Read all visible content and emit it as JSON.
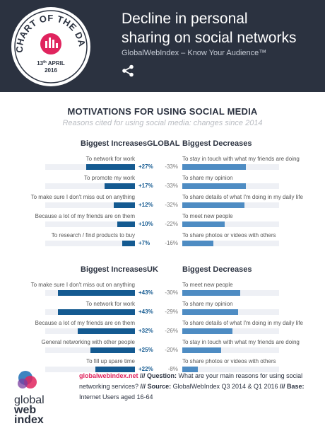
{
  "header": {
    "badge_text": "CHART OF THE DAY",
    "badge_date_day": "13",
    "badge_date_suffix": "th",
    "badge_date_month": "APRIL",
    "badge_year": "2016",
    "title_line1": "Decline in personal",
    "title_line2": "sharing on social networks",
    "subtitle": "GlobalWebIndex – Know Your Audience™",
    "share_icon": "share-icon"
  },
  "section": {
    "title": "MOTIVATIONS FOR USING SOCIAL MEDIA",
    "subtitle": "Reasons cited for using social media: changes since 2014"
  },
  "colors": {
    "header_bg": "#2b3240",
    "increase": "#145a91",
    "decrease": "#4e8cc3",
    "track": "#eef0f5",
    "link": "#e0245e"
  },
  "chart_data": [
    {
      "type": "bar",
      "region": "GLOBAL",
      "increase_heading": "Biggest Increases",
      "decrease_heading": "Biggest Decreases",
      "increases": [
        {
          "label": "To network for work",
          "value": 27,
          "display": "+27%"
        },
        {
          "label": "To promote my work",
          "value": 17,
          "display": "+17%"
        },
        {
          "label": "To make sure I don't miss out on anything",
          "value": 12,
          "display": "+12%"
        },
        {
          "label": "Because a lot of my friends are on them",
          "value": 10,
          "display": "+10%"
        },
        {
          "label": "To research / find products to buy",
          "value": 7,
          "display": "+7%"
        }
      ],
      "decreases": [
        {
          "label": "To stay in touch with what my friends are doing",
          "value": -33,
          "display": "-33%"
        },
        {
          "label": "To share my opinion",
          "value": -33,
          "display": "-33%"
        },
        {
          "label": "To share details of what I'm doing in my daily life",
          "value": -32,
          "display": "-32%"
        },
        {
          "label": "To meet new people",
          "value": -22,
          "display": "-22%"
        },
        {
          "label": "To share photos or videos with others",
          "value": -16,
          "display": "-16%"
        }
      ],
      "scale_max": 50
    },
    {
      "type": "bar",
      "region": "UK",
      "increase_heading": "Biggest Increases",
      "decrease_heading": "Biggest Decreases",
      "increases": [
        {
          "label": "To make sure I don't miss out on anything",
          "value": 43,
          "display": "+43%"
        },
        {
          "label": "To network for work",
          "value": 43,
          "display": "+43%"
        },
        {
          "label": "Because a lot of my friends are on them",
          "value": 32,
          "display": "+32%"
        },
        {
          "label": "General networking with other people",
          "value": 25,
          "display": "+25%"
        },
        {
          "label": "To fill up spare time",
          "value": 22,
          "display": "+22%"
        }
      ],
      "decreases": [
        {
          "label": "To meet new people",
          "value": -30,
          "display": "-30%"
        },
        {
          "label": "To share my opinion",
          "value": -29,
          "display": "-29%"
        },
        {
          "label": "To share details of what I'm doing in my daily life",
          "value": -26,
          "display": "-26%"
        },
        {
          "label": "To stay in touch with what my friends are doing",
          "value": -20,
          "display": "-20%"
        },
        {
          "label": "To share photos or videos with others",
          "value": -8,
          "display": "-8%"
        }
      ],
      "scale_max": 50
    }
  ],
  "footer": {
    "logo_line1": "global",
    "logo_line2": "web",
    "logo_line3": "index",
    "link": "globalwebindex.net",
    "sep1": " /// ",
    "question_label": "Question:",
    "question": " What are your main reasons for using social networking services?",
    "sep2": " /// ",
    "source_label": "Source:",
    "source": " GlobalWebIndex Q3 2014 & Q1 2016",
    "sep3": " /// ",
    "base_label": "Base:",
    "base": " Internet Users aged 16-64"
  }
}
